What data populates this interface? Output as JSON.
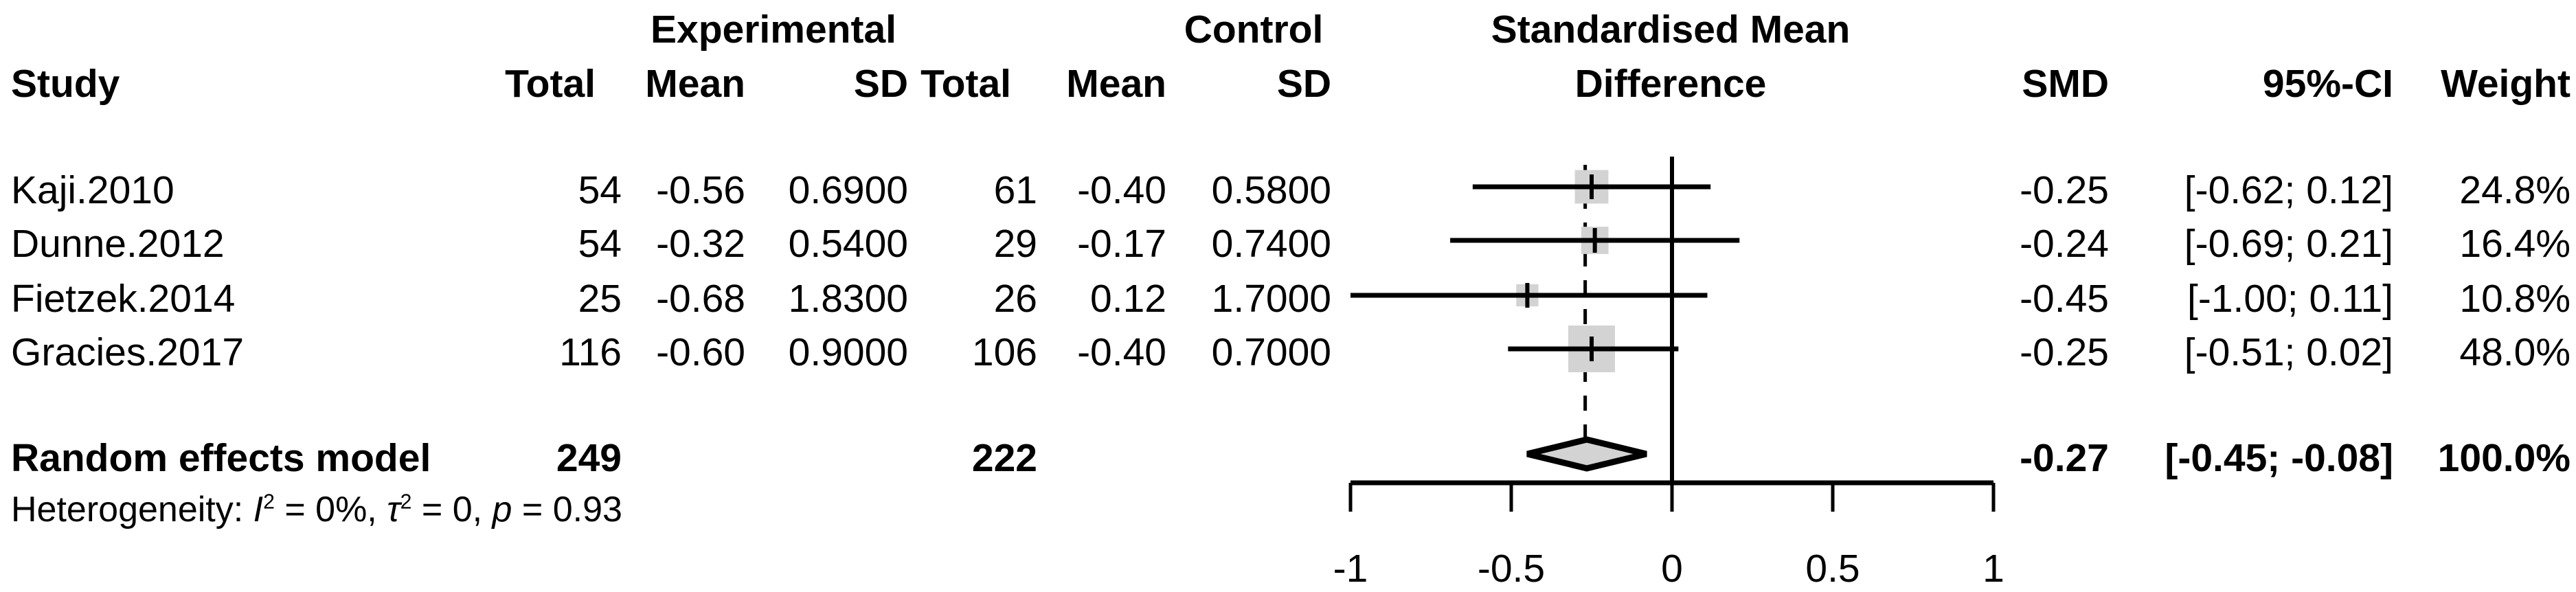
{
  "header": {
    "col_groups": {
      "experimental": "Experimental",
      "control": "Control",
      "smd_line1": "Standardised Mean",
      "smd_line2": "Difference"
    },
    "columns": {
      "study": "Study",
      "total": "Total",
      "mean": "Mean",
      "sd": "SD",
      "smd": "SMD",
      "ci": "95%-CI",
      "weight": "Weight"
    }
  },
  "rows": [
    {
      "study": "Kaji.2010",
      "total_e": "54",
      "mean_e": "-0.56",
      "sd_e": "0.6900",
      "total_c": "61",
      "mean_c": "-0.40",
      "sd_c": "0.5800",
      "smd": "-0.25",
      "ci": "[-0.62; 0.12]",
      "weight": "24.8%"
    },
    {
      "study": "Dunne.2012",
      "total_e": "54",
      "mean_e": "-0.32",
      "sd_e": "0.5400",
      "total_c": "29",
      "mean_c": "-0.17",
      "sd_c": "0.7400",
      "smd": "-0.24",
      "ci": "[-0.69; 0.21]",
      "weight": "16.4%"
    },
    {
      "study": "Fietzek.2014",
      "total_e": "25",
      "mean_e": "-0.68",
      "sd_e": "1.8300",
      "total_c": "26",
      "mean_c": "0.12",
      "sd_c": "1.7000",
      "smd": "-0.45",
      "ci": "[-1.00; 0.11]",
      "weight": "10.8%"
    },
    {
      "study": "Gracies.2017",
      "total_e": "116",
      "mean_e": "-0.60",
      "sd_e": "0.9000",
      "total_c": "106",
      "mean_c": "-0.40",
      "sd_c": "0.7000",
      "smd": "-0.25",
      "ci": "[-0.51; 0.02]",
      "weight": "48.0%"
    }
  ],
  "pooled": {
    "label": "Random effects model",
    "total_e": "249",
    "total_c": "222",
    "smd": "-0.27",
    "ci": "[-0.45; -0.08]",
    "weight": "100.0%"
  },
  "heterogeneity": {
    "prefix": "Heterogeneity: ",
    "i_sym": "I",
    "i_sup": "2",
    "i_eq": " = 0%, ",
    "tau_sym": "τ",
    "tau_sup": "2",
    "tau_eq": " = 0, ",
    "p_sym": "p",
    "p_eq": " = 0.93"
  },
  "chart_data": {
    "type": "forest",
    "effect_measure": "SMD",
    "studies": [
      {
        "label": "Kaji.2010",
        "n_e": 54,
        "mean_e": -0.56,
        "sd_e": 0.69,
        "n_c": 61,
        "mean_c": -0.4,
        "sd_c": 0.58,
        "smd": -0.25,
        "ci_low": -0.62,
        "ci_high": 0.12,
        "weight_pct": 24.8
      },
      {
        "label": "Dunne.2012",
        "n_e": 54,
        "mean_e": -0.32,
        "sd_e": 0.54,
        "n_c": 29,
        "mean_c": -0.17,
        "sd_c": 0.74,
        "smd": -0.24,
        "ci_low": -0.69,
        "ci_high": 0.21,
        "weight_pct": 16.4
      },
      {
        "label": "Fietzek.2014",
        "n_e": 25,
        "mean_e": -0.68,
        "sd_e": 1.83,
        "n_c": 26,
        "mean_c": 0.12,
        "sd_c": 1.7,
        "smd": -0.45,
        "ci_low": -1.0,
        "ci_high": 0.11,
        "weight_pct": 10.8
      },
      {
        "label": "Gracies.2017",
        "n_e": 116,
        "mean_e": -0.6,
        "sd_e": 0.9,
        "n_c": 106,
        "mean_c": -0.4,
        "sd_c": 0.7,
        "smd": -0.25,
        "ci_low": -0.51,
        "ci_high": 0.02,
        "weight_pct": 48.0
      }
    ],
    "pooled": {
      "label": "Random effects model",
      "n_e": 249,
      "n_c": 222,
      "smd": -0.27,
      "ci_low": -0.45,
      "ci_high": -0.08,
      "weight_pct": 100.0
    },
    "heterogeneity_stats": {
      "I2": "0%",
      "tau2": "0",
      "p": "0.93"
    },
    "axis": {
      "xlim": [
        -1,
        1
      ],
      "ticks": [
        -1,
        -0.5,
        0,
        0.5,
        1
      ],
      "tick_labels": [
        "-1",
        "-0.5",
        "0",
        "0.5",
        "1"
      ],
      "zero_line": 0,
      "dashed_line_at": -0.27
    },
    "colors": {
      "square": "#d3d3d3",
      "diamond_fill": "#d3d3d3",
      "line": "#000000",
      "background": "#ffffff"
    }
  }
}
